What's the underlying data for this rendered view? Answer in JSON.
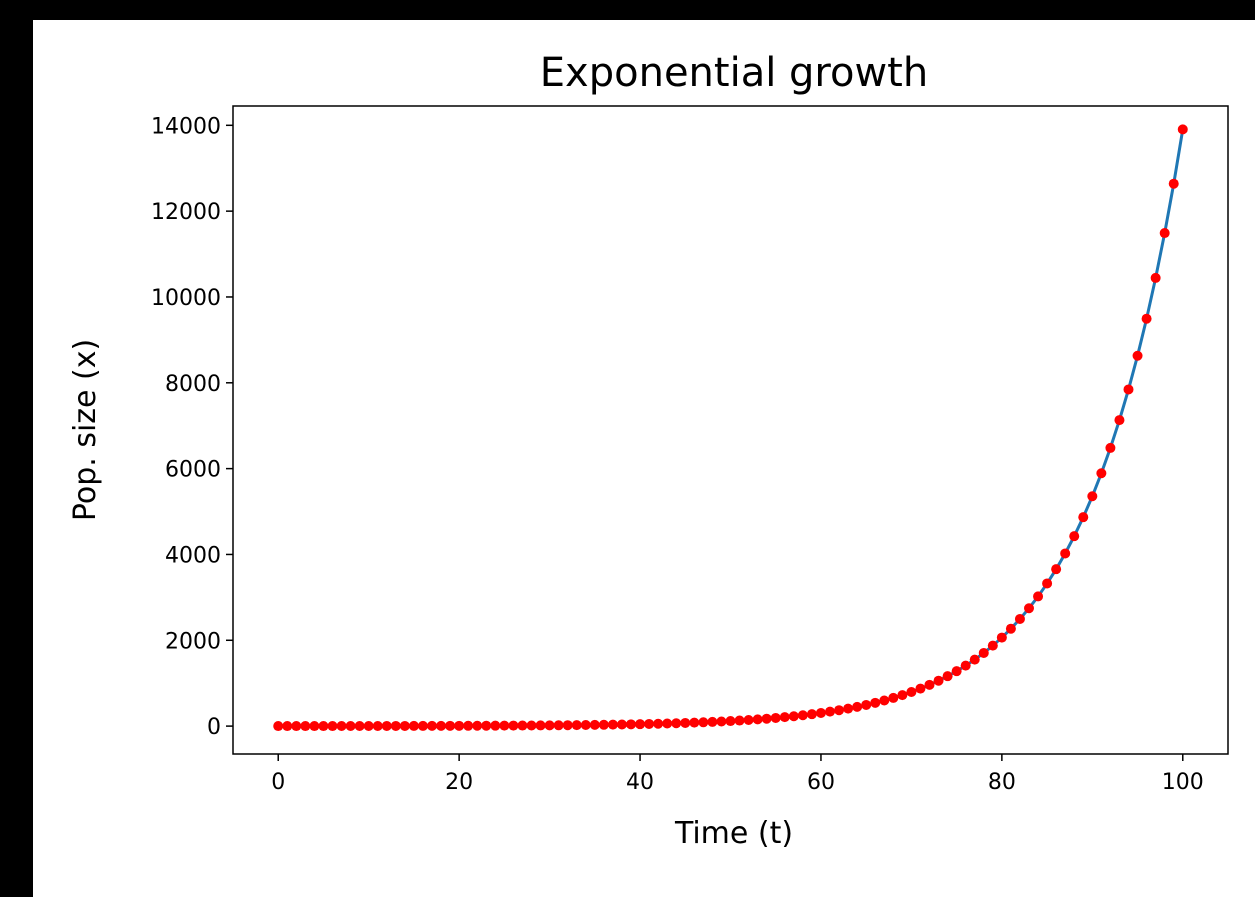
{
  "chart_data": {
    "type": "line",
    "title": "Exponential growth",
    "xlabel": "Time (t)",
    "ylabel": "Pop. size (x)",
    "xlim": [
      -5,
      105
    ],
    "ylim": [
      -650,
      14450
    ],
    "xticks": [
      0,
      20,
      40,
      60,
      80,
      100
    ],
    "yticks": [
      0,
      2000,
      4000,
      6000,
      8000,
      10000,
      12000,
      14000
    ],
    "xtick_labels": [
      "0",
      "20",
      "40",
      "60",
      "80",
      "100"
    ],
    "ytick_labels": [
      "0",
      "2000",
      "4000",
      "6000",
      "8000",
      "10000",
      "12000",
      "14000"
    ],
    "grid": false,
    "model": {
      "x0": 1,
      "r": 0.0954,
      "t_start": 0,
      "t_end": 100,
      "step": 1
    },
    "series": [
      {
        "style": "line",
        "color": "#1f77b4"
      },
      {
        "style": "points",
        "color": "#ff0000"
      }
    ]
  }
}
